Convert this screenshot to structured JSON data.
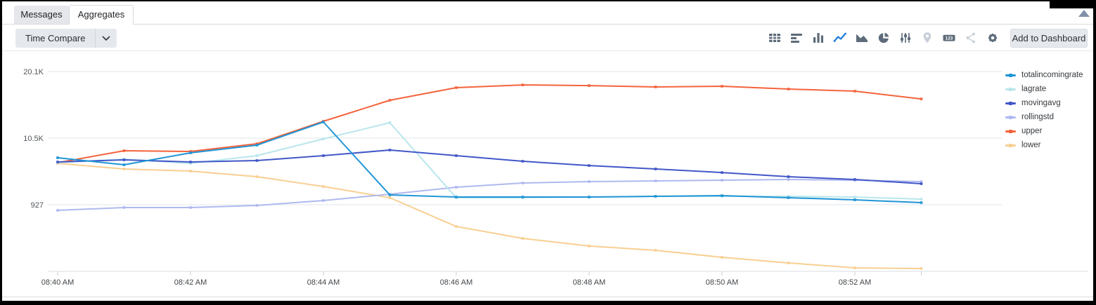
{
  "tabs": [
    {
      "label": "Messages",
      "active": false
    },
    {
      "label": "Aggregates",
      "active": true
    }
  ],
  "toolbar": {
    "time_compare_label": "Time Compare",
    "add_to_dashboard_label": "Add to Dashboard",
    "icons": [
      "table-icon",
      "horizontal-bars-icon",
      "bar-chart-icon",
      "line-chart-icon",
      "area-chart-icon",
      "pie-chart-icon",
      "sliders-icon",
      "map-pin-icon",
      "number-123-icon",
      "cluster-icon",
      "settings-gear-icon"
    ],
    "active_icon": "line-chart-icon",
    "icon_colors": {
      "default": "#5d6b7a",
      "active": "#1e7bd9",
      "disabled": "#c8cfd8"
    }
  },
  "chart_data": {
    "type": "line",
    "x": [
      "08:40 AM",
      "08:41 AM",
      "08:42 AM",
      "08:43 AM",
      "08:44 AM",
      "08:45 AM",
      "08:46 AM",
      "08:47 AM",
      "08:48 AM",
      "08:49 AM",
      "08:50 AM",
      "08:51 AM",
      "08:52 AM",
      "08:53 AM"
    ],
    "x_axis_labels_shown": [
      "08:40 AM",
      "08:42 AM",
      "08:44 AM",
      "08:46 AM",
      "08:48 AM",
      "08:50 AM",
      "08:52 AM"
    ],
    "y_ticks": [
      {
        "value": 927,
        "label": "927"
      },
      {
        "value": 10527,
        "label": "10.5K"
      },
      {
        "value": 20127,
        "label": "20.1K"
      }
    ],
    "ylim": [
      -8700,
      21800
    ],
    "grid": "horizontal",
    "legend_position": "right",
    "series": [
      {
        "name": "totalincomingrate",
        "color": "#2095d5",
        "values": [
          7700,
          6690,
          8400,
          9520,
          12850,
          2340,
          2040,
          2040,
          2040,
          2140,
          2240,
          1940,
          1630,
          1230
        ]
      },
      {
        "name": "lagrate",
        "color": "#b8e6ec",
        "values": [
          6990,
          7490,
          6890,
          8000,
          10420,
          12750,
          1940,
          1940,
          2040,
          2140,
          2140,
          2140,
          2040,
          1740
        ]
      },
      {
        "name": "movingavg",
        "color": "#4257c8",
        "values": [
          7090,
          7390,
          7090,
          7290,
          8000,
          8810,
          8000,
          7190,
          6580,
          6080,
          5570,
          4970,
          4560,
          3960
        ]
      },
      {
        "name": "rollingstd",
        "color": "#aeb9ef",
        "values": [
          120,
          520,
          520,
          830,
          1530,
          2440,
          3450,
          4060,
          4260,
          4360,
          4460,
          4560,
          4460,
          4260
        ]
      },
      {
        "name": "upper",
        "color": "#f4633c",
        "values": [
          6990,
          8710,
          8610,
          9720,
          12950,
          15980,
          17800,
          18200,
          18100,
          17900,
          18000,
          17600,
          17300,
          16180
        ]
      },
      {
        "name": "lower",
        "color": "#f8cf92",
        "values": [
          6890,
          6080,
          5780,
          4970,
          3550,
          1940,
          -2210,
          -3920,
          -5030,
          -5640,
          -6650,
          -7460,
          -8170,
          -8270
        ]
      }
    ]
  }
}
